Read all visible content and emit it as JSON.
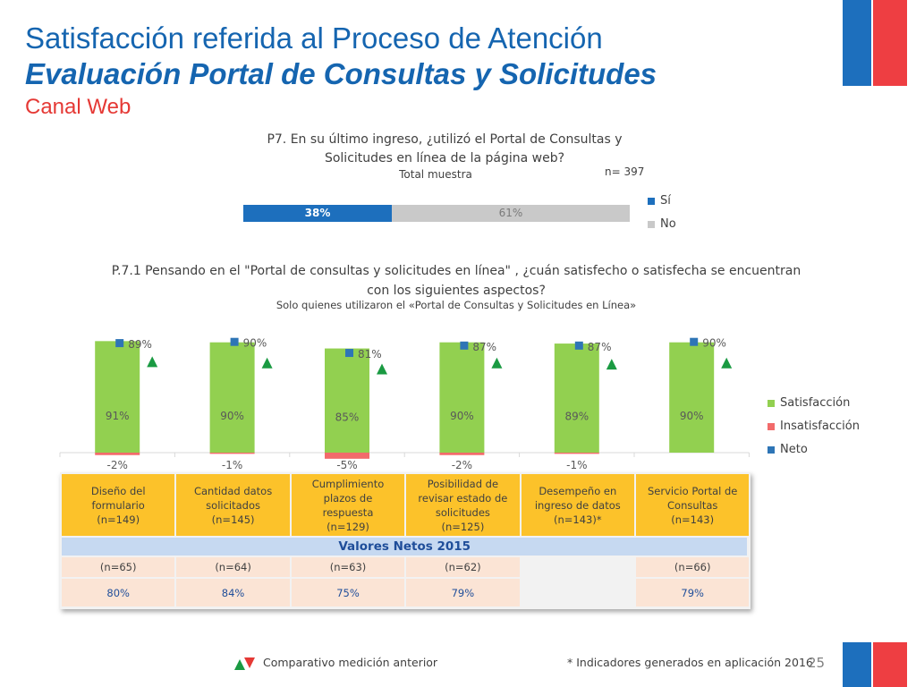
{
  "header": {
    "title_line1": "Satisfacción referida al Proceso de Atención",
    "title_line2": "Evaluación Portal de Consultas y Solicitudes",
    "title_line3": "Canal Web"
  },
  "colors": {
    "blue": "#1d6fbd",
    "gray": "#c9c9c9",
    "green": "#92d050",
    "red": "#f26b6b",
    "neto": "#2e75b6",
    "header_yellow": "#fcc22a",
    "band_blue": "#c6d9f1",
    "row_peach": "#fbe4d5",
    "arrow_green": "#1a9a42",
    "arrow_red": "#e53935"
  },
  "chart_data": [
    {
      "type": "bar",
      "orientation": "horizontal",
      "stacked": true,
      "title": "P7. En su último ingreso, ¿utilizó el Portal de Consultas y Solicitudes en línea de la página web?",
      "subtitle": "Total muestra",
      "n_label": "n= 397",
      "categories": [
        "Total muestra"
      ],
      "series": [
        {
          "name": "Sí",
          "values": [
            38
          ],
          "label": "38%"
        },
        {
          "name": "No",
          "values": [
            61
          ],
          "label": "61%"
        }
      ],
      "legend": "right"
    },
    {
      "type": "bar",
      "stacked": true,
      "title": "P.7.1 Pensando en el \"Portal de consultas y solicitudes en línea\" , ¿cuán satisfecho o satisfecha se encuentran con los siguientes aspectos?",
      "subtitle": "Solo quienes utilizaron el «Portal de Consultas y Solicitudes en Línea»",
      "categories": [
        "Diseño del formulario",
        "Cantidad datos solicitados",
        "Cumplimiento plazos de respuesta",
        "Posibilidad de revisar estado de solicitudes",
        "Desempeño en ingreso de datos",
        "Servicio Portal de Consultas"
      ],
      "series": [
        {
          "name": "Satisfacción",
          "values": [
            91,
            90,
            85,
            90,
            89,
            90
          ],
          "labels": [
            "91%",
            "90%",
            "85%",
            "90%",
            "89%",
            "90%"
          ]
        },
        {
          "name": "Insatisfacción",
          "values": [
            -2,
            -1,
            -5,
            -2,
            -1,
            0
          ],
          "labels": [
            "-2%",
            "-1%",
            "-5%",
            "-2%",
            "-1%",
            ""
          ]
        },
        {
          "name": "Neto",
          "values": [
            89,
            90,
            81,
            87,
            87,
            90
          ],
          "labels": [
            "89%",
            "90%",
            "81%",
            "87%",
            "87%",
            "90%"
          ]
        }
      ],
      "trend": [
        "up",
        "up",
        "up",
        "up",
        "up",
        "up"
      ],
      "legend": "right",
      "grid": false
    }
  ],
  "table": {
    "headers": [
      {
        "name": "Diseño del formulario",
        "n": "(n=149)"
      },
      {
        "name": "Cantidad datos solicitados",
        "n": "(n=145)"
      },
      {
        "name": "Cumplimiento plazos de respuesta",
        "n": "(n=129)"
      },
      {
        "name": "Posibilidad de revisar estado de solicitudes",
        "n": "(n=125)"
      },
      {
        "name": "Desempeño en ingreso de datos",
        "n": "(n=143)*"
      },
      {
        "name": "Servicio Portal de Consultas",
        "n": "(n=143)"
      }
    ],
    "band_label": "Valores Netos 2015",
    "n_2015": [
      "(n=65)",
      "(n=64)",
      "(n=63)",
      "(n=62)",
      "",
      "(n=66)"
    ],
    "values_2015": [
      "80%",
      "84%",
      "75%",
      "79%",
      "",
      "79%"
    ]
  },
  "footer": {
    "comparativo": "Comparativo medición anterior",
    "note": "* Indicadores generados en aplicación 2016",
    "page": "25"
  }
}
